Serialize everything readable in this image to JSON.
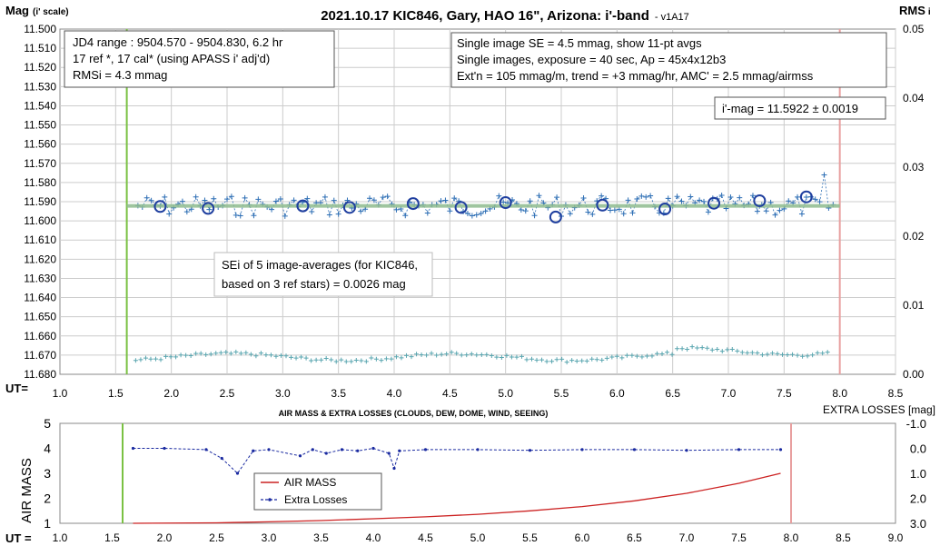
{
  "main": {
    "title": "2021.10.17 KIC846, Gary, HAO 16\", Arizona: i'-band",
    "title_suffix": "- v1A17",
    "y_label": "Mag",
    "y_label_suffix": "(i' scale)",
    "y2_label": "RMS",
    "y2_label_suffix": "i",
    "ut_label": "UT=",
    "y_ticks": [
      "11.500",
      "11.510",
      "11.520",
      "11.530",
      "11.540",
      "11.550",
      "11.560",
      "11.570",
      "11.580",
      "11.590",
      "11.600",
      "11.610",
      "11.620",
      "11.630",
      "11.640",
      "11.650",
      "11.660",
      "11.670",
      "11.680"
    ],
    "y2_ticks": [
      "0.05",
      "0.04",
      "0.03",
      "0.02",
      "0.01",
      "0.00"
    ],
    "x_ticks": [
      "1.0",
      "1.5",
      "2.0",
      "2.5",
      "3.0",
      "3.5",
      "4.0",
      "4.5",
      "5.0",
      "5.5",
      "6.0",
      "6.5",
      "7.0",
      "7.5",
      "8.0",
      "8.5"
    ],
    "box_left": [
      "JD4 range : 9504.570 - 9504.830, 6.2  hr",
      "17 ref *, 17 cal* (using APASS i' adj'd)",
      "RMSi = 4.3 mmag"
    ],
    "box_right": [
      "Single image SE = 4.5 mmag, show 11-pt avgs",
      "Single images, exposure = 40 sec, Ap = 45x4x12b3",
      "Ext'n = 105 mmag/m, trend = +3 mmag/hr, AMC' = 2.5 mmag/airmss"
    ],
    "box_mag": "i'-mag = 11.5922 ± 0.0019",
    "box_sei": [
      "SEi of 5 image-averages (for KIC846,",
      "based on 3 ref stars) = 0.0026 mag"
    ]
  },
  "lower": {
    "title": "AIR MASS & EXTRA LOSSES (CLOUDS, DEW, DOME, WIND, SEEING)",
    "y_label": "AIR MASS",
    "y2_label": "EXTRA LOSSES [mag]",
    "ut_label": "UT =",
    "y_ticks": [
      "5",
      "4",
      "3",
      "2",
      "1"
    ],
    "y2_ticks": [
      "-1.0",
      "0.0",
      "1.0",
      "2.0",
      "3.0"
    ],
    "x_ticks": [
      "1.0",
      "1.5",
      "2.0",
      "2.5",
      "3.0",
      "3.5",
      "4.0",
      "4.5",
      "5.0",
      "5.5",
      "6.0",
      "6.5",
      "7.0",
      "7.5",
      "8.0",
      "8.5",
      "9.0"
    ],
    "legend": [
      "AIR MASS",
      "Extra Losses"
    ]
  },
  "colors": {
    "start_line": "#7ac143",
    "end_line": "#e8a0a0",
    "fit_line": "#8fbc8f",
    "data": "#2e6fb5",
    "avg": "#1f3f9f",
    "rms": "#5aa6b0",
    "airmass": "#cc2222",
    "losses": "#1a2aa0"
  },
  "chart_data": [
    {
      "type": "scatter",
      "title": "2021.10.17 KIC846, Gary, HAO 16\", Arizona: i'-band",
      "xlabel": "UT",
      "ylabel": "Mag (i' scale)",
      "y2label": "RMS i",
      "xlim": [
        1.0,
        8.5
      ],
      "ylim": [
        11.68,
        11.5
      ],
      "y2lim": [
        0.0,
        0.05
      ],
      "grid": true,
      "start_ut": 1.6,
      "end_ut": 8.0,
      "fit_mag": 11.5922,
      "averages": {
        "x": [
          1.9,
          2.33,
          3.18,
          3.6,
          4.17,
          4.6,
          5.0,
          5.45,
          5.87,
          6.43,
          6.87,
          7.28,
          7.7
        ],
        "y": [
          11.5925,
          11.5935,
          11.5922,
          11.593,
          11.591,
          11.593,
          11.5905,
          11.598,
          11.5918,
          11.5938,
          11.5908,
          11.5895,
          11.5875
        ]
      },
      "rms_level": 0.0025
    },
    {
      "type": "line",
      "title": "AIR MASS & EXTRA LOSSES (CLOUDS, DEW, DOME, WIND, SEEING)",
      "xlabel": "UT",
      "ylabel": "AIR MASS",
      "y2label": "EXTRA LOSSES [mag]",
      "xlim": [
        1.0,
        9.0
      ],
      "ylim": [
        1,
        5
      ],
      "y2lim": [
        -1.0,
        3.0
      ],
      "start_ut": 1.6,
      "end_ut": 8.0,
      "series": [
        {
          "name": "AIR MASS",
          "x": [
            1.7,
            2.5,
            3.0,
            3.5,
            4.0,
            4.5,
            5.0,
            5.5,
            6.0,
            6.5,
            7.0,
            7.5,
            7.9
          ],
          "values": [
            1.0,
            1.02,
            1.06,
            1.11,
            1.18,
            1.26,
            1.36,
            1.5,
            1.67,
            1.9,
            2.2,
            2.6,
            3.0
          ]
        },
        {
          "name": "Extra Losses",
          "x": [
            1.7,
            2.0,
            2.4,
            2.55,
            2.7,
            2.85,
            3.0,
            3.3,
            3.42,
            3.55,
            3.7,
            3.85,
            4.0,
            4.15,
            4.2,
            4.25,
            4.5,
            5.0,
            5.5,
            6.0,
            6.5,
            7.0,
            7.5,
            7.9
          ],
          "values": [
            0.0,
            0.0,
            0.05,
            0.4,
            1.0,
            0.1,
            0.05,
            0.3,
            0.05,
            0.2,
            0.05,
            0.1,
            0.0,
            0.2,
            0.8,
            0.1,
            0.05,
            0.05,
            0.08,
            0.05,
            0.05,
            0.08,
            0.05,
            0.05
          ]
        }
      ]
    }
  ]
}
